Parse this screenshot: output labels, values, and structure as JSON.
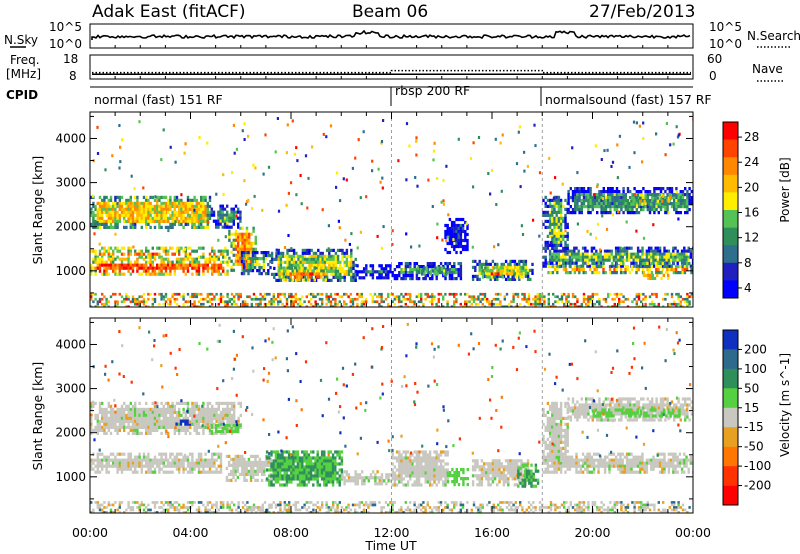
{
  "header": {
    "station": "Adak East (fitACF)",
    "beam": "Beam 06",
    "date": "27/Feb/2013"
  },
  "scan_panel": {
    "left_label": "N.Sky",
    "right_label": "N.Search",
    "left_ticks": [
      "10^5",
      "10^0"
    ],
    "right_ticks": [
      "10^5",
      "10^0"
    ]
  },
  "freq_panel": {
    "left_label": "Freq.",
    "left_unit": "[MHz]",
    "right_label": "Nave",
    "left_ticks": [
      "18",
      "8"
    ],
    "right_ticks": [
      "60",
      "0"
    ],
    "frequency_mhz": 10,
    "nave_low": 16,
    "nave_high": 21
  },
  "cpid": {
    "label": "CPID",
    "segments": [
      {
        "label": "normal (fast) 151 RF",
        "start_hour": 0,
        "end_hour": 12
      },
      {
        "label": "rbsp 200 RF",
        "start_hour": 12,
        "end_hour": 18
      },
      {
        "label": "normalsound (fast) 157 RF",
        "start_hour": 18,
        "end_hour": 24
      }
    ]
  },
  "power_colorbar": {
    "label": "Power [dB]",
    "ticks": [
      "28",
      "24",
      "20",
      "16",
      "12",
      "8",
      "4"
    ],
    "colors": [
      "#ff0000",
      "#ff4400",
      "#ff8800",
      "#ffbb00",
      "#ffee00",
      "#55c255",
      "#2f8f5a",
      "#2e6f8e",
      "#2020c0",
      "#0000ff"
    ]
  },
  "velocity_colorbar": {
    "label": "Velocity [m s^-1]",
    "ticks": [
      "200",
      "100",
      "50",
      "15",
      "-15",
      "-50",
      "-100",
      "-200"
    ],
    "colors": [
      "#1030c0",
      "#2e6a8c",
      "#2f8f5a",
      "#55d040",
      "#c8c8c0",
      "#e8a020",
      "#ff7700",
      "#ff3300",
      "#ff0000"
    ]
  },
  "chart_data": {
    "type": "heatmap",
    "x_label": "Time UT",
    "x_ticks": [
      "00:00",
      "04:00",
      "08:00",
      "12:00",
      "16:00",
      "20:00",
      "00:00"
    ],
    "xlim_hours": [
      0,
      24
    ],
    "y_label": "Slant Range [km]",
    "y_ticks": [
      "1000",
      "2000",
      "3000",
      "4000"
    ],
    "ylim_km": [
      180,
      4600
    ],
    "panels": [
      {
        "name": "Power",
        "regions": [
          {
            "t0": 0.0,
            "t1": 5.5,
            "r0": 1300,
            "r1": 1550,
            "value": 24
          },
          {
            "t0": 0.0,
            "t1": 5.5,
            "r0": 900,
            "r1": 1300,
            "value": 26
          },
          {
            "t0": 0.0,
            "t1": 4.8,
            "r0": 2000,
            "r1": 2700,
            "value": 20
          },
          {
            "t0": 4.8,
            "t1": 6.0,
            "r0": 2000,
            "r1": 2500,
            "value": 12
          },
          {
            "t0": 5.5,
            "t1": 6.6,
            "r0": 1000,
            "r1": 2000,
            "value": 22
          },
          {
            "t0": 6.0,
            "t1": 7.2,
            "r0": 950,
            "r1": 1450,
            "value": 14
          },
          {
            "t0": 7.2,
            "t1": 10.6,
            "r0": 800,
            "r1": 1500,
            "value": 16
          },
          {
            "t0": 7.5,
            "t1": 9.5,
            "r0": 780,
            "r1": 1100,
            "value": 24
          },
          {
            "t0": 10.6,
            "t1": 12.0,
            "r0": 850,
            "r1": 1150,
            "value": 10
          },
          {
            "t0": 12.0,
            "t1": 14.8,
            "r0": 850,
            "r1": 1200,
            "value": 12
          },
          {
            "t0": 13.0,
            "t1": 14.2,
            "r0": 900,
            "r1": 1100,
            "value": 20
          },
          {
            "t0": 14.1,
            "t1": 15.0,
            "r0": 1450,
            "r1": 2200,
            "value": 6
          },
          {
            "t0": 15.2,
            "t1": 17.6,
            "r0": 800,
            "r1": 1250,
            "value": 16
          },
          {
            "t0": 15.6,
            "t1": 17.2,
            "r0": 850,
            "r1": 1100,
            "value": 24
          },
          {
            "t0": 18.0,
            "t1": 24.0,
            "r0": 1100,
            "r1": 1550,
            "value": 14
          },
          {
            "t0": 18.2,
            "t1": 24.0,
            "r0": 950,
            "r1": 1200,
            "value": 22
          },
          {
            "t0": 18.0,
            "t1": 19.0,
            "r0": 1500,
            "r1": 2700,
            "value": 14
          },
          {
            "t0": 19.0,
            "t1": 24.0,
            "r0": 2300,
            "r1": 2900,
            "value": 12
          },
          {
            "t0": 21.5,
            "t1": 23.2,
            "r0": 2500,
            "r1": 2750,
            "value": 22
          },
          {
            "t0": 22.0,
            "t1": 23.0,
            "r0": 800,
            "r1": 1000,
            "value": 28
          },
          {
            "t0": 0.0,
            "t1": 24.0,
            "r0": 200,
            "r1": 500,
            "value": 18
          }
        ]
      },
      {
        "name": "Velocity",
        "regions": [
          {
            "t0": 0.0,
            "t1": 5.2,
            "r0": 1100,
            "r1": 1550,
            "value": 0
          },
          {
            "t0": 0.0,
            "t1": 6.0,
            "r0": 2000,
            "r1": 2700,
            "value": 0
          },
          {
            "t0": 3.4,
            "t1": 4.0,
            "r0": 2200,
            "r1": 2300,
            "value": 210
          },
          {
            "t0": 4.8,
            "t1": 6.0,
            "r0": 2050,
            "r1": 2200,
            "value": 30
          },
          {
            "t0": 5.4,
            "t1": 7.2,
            "r0": 950,
            "r1": 1500,
            "value": 0
          },
          {
            "t0": 7.0,
            "t1": 10.0,
            "r0": 800,
            "r1": 1600,
            "value": 40
          },
          {
            "t0": 10.0,
            "t1": 12.0,
            "r0": 850,
            "r1": 1150,
            "value": 0
          },
          {
            "t0": 12.0,
            "t1": 14.2,
            "r0": 850,
            "r1": 1600,
            "value": 0
          },
          {
            "t0": 14.2,
            "t1": 15.0,
            "r0": 850,
            "r1": 1200,
            "value": 30
          },
          {
            "t0": 15.2,
            "t1": 17.4,
            "r0": 800,
            "r1": 1400,
            "value": 0
          },
          {
            "t0": 17.0,
            "t1": 17.8,
            "r0": 800,
            "r1": 1300,
            "value": 40
          },
          {
            "t0": 18.0,
            "t1": 24.0,
            "r0": 1100,
            "r1": 1550,
            "value": 0
          },
          {
            "t0": 18.0,
            "t1": 19.0,
            "r0": 1400,
            "r1": 2700,
            "value": 0
          },
          {
            "t0": 19.0,
            "t1": 24.0,
            "r0": 2300,
            "r1": 2800,
            "value": 0
          },
          {
            "t0": 20.0,
            "t1": 23.5,
            "r0": 2350,
            "r1": 2550,
            "value": 30
          },
          {
            "t0": 0.0,
            "t1": 24.0,
            "r0": 200,
            "r1": 450,
            "value": 0
          }
        ]
      }
    ]
  }
}
